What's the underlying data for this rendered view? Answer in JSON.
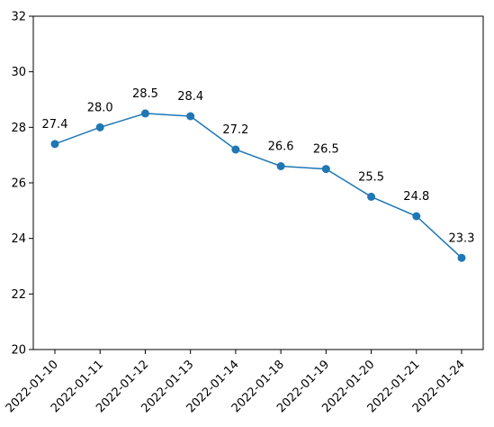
{
  "chart_data": {
    "type": "line",
    "categories": [
      "2022-01-10",
      "2022-01-11",
      "2022-01-12",
      "2022-01-13",
      "2022-01-14",
      "2022-01-18",
      "2022-01-19",
      "2022-01-20",
      "2022-01-21",
      "2022-01-24"
    ],
    "values": [
      27.4,
      28.0,
      28.5,
      28.4,
      27.2,
      26.6,
      26.5,
      25.5,
      24.8,
      23.3
    ],
    "data_labels": [
      "27.4",
      "28.0",
      "28.5",
      "28.4",
      "27.2",
      "26.6",
      "26.5",
      "25.5",
      "24.8",
      "23.3"
    ],
    "yticks": [
      20,
      22,
      24,
      26,
      28,
      30,
      32
    ],
    "ylim": [
      20,
      32
    ],
    "title": "",
    "xlabel": "",
    "ylabel": "",
    "grid": false,
    "line_color": "#1f77b4",
    "marker": "circle"
  }
}
